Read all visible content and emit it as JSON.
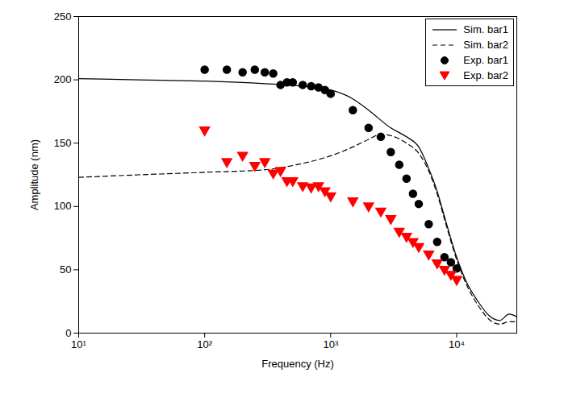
{
  "chart_data": {
    "type": "line",
    "x_label": "Frequency (Hz)",
    "y_label": "Amplitude (nm)",
    "log": "x",
    "xlim": [
      10,
      30000
    ],
    "xticks": [
      {
        "value": 10,
        "label": "10¹"
      },
      {
        "value": 100,
        "label": "10²"
      },
      {
        "value": 1000,
        "label": "10³"
      },
      {
        "value": 10000,
        "label": "10⁴"
      }
    ],
    "ylim": [
      0,
      250
    ],
    "yticks": [
      0,
      50,
      100,
      150,
      200,
      250
    ],
    "grid": false,
    "legend": "top-right",
    "series": [
      {
        "name": "Sim. bar1",
        "type": "line",
        "color": "#000000",
        "line_style": "solid",
        "x": [
          10,
          30,
          100,
          300,
          600,
          1000,
          1500,
          2000,
          3000,
          4000,
          5000,
          6000,
          7000,
          8000,
          10000,
          12000,
          15000,
          18000,
          22000,
          26000,
          30000
        ],
        "values": [
          201,
          200,
          199,
          197,
          195,
          192,
          185,
          176,
          162,
          155,
          147,
          130,
          112,
          92,
          60,
          40,
          24,
          14,
          10,
          15,
          13
        ]
      },
      {
        "name": "Sim. bar2",
        "type": "line",
        "color": "#000000",
        "line_style": "dashed",
        "x": [
          10,
          30,
          100,
          300,
          600,
          1000,
          1500,
          2000,
          2500,
          3000,
          4000,
          5000,
          6000,
          7000,
          8000,
          10000,
          12000,
          15000,
          18000,
          22000,
          26000,
          30000
        ],
        "values": [
          123,
          125,
          127,
          129,
          134,
          140,
          147,
          153,
          157,
          156,
          150,
          142,
          128,
          110,
          90,
          58,
          38,
          21,
          11,
          7,
          9,
          9
        ]
      },
      {
        "name": "Exp. bar1",
        "type": "scatter",
        "color": "#000000",
        "marker": "circle",
        "x": [
          100,
          150,
          200,
          250,
          300,
          350,
          400,
          450,
          500,
          600,
          700,
          800,
          900,
          1000,
          1500,
          2000,
          2500,
          3000,
          3500,
          4000,
          4500,
          5000,
          6000,
          7000,
          8000,
          9000,
          10000
        ],
        "values": [
          208,
          208,
          206,
          208,
          206,
          205,
          196,
          198,
          198,
          196,
          195,
          194,
          192,
          189,
          176,
          162,
          155,
          143,
          133,
          122,
          110,
          102,
          86,
          72,
          60,
          56,
          51
        ]
      },
      {
        "name": "Exp. bar2",
        "type": "scatter",
        "color": "#ff0000",
        "marker": "triangle-down",
        "x": [
          100,
          150,
          200,
          250,
          300,
          350,
          400,
          450,
          500,
          600,
          700,
          800,
          900,
          1000,
          1500,
          2000,
          2500,
          3000,
          3500,
          4000,
          4500,
          5000,
          6000,
          7000,
          8000,
          9000,
          10000
        ],
        "values": [
          160,
          135,
          140,
          132,
          135,
          126,
          128,
          120,
          120,
          116,
          115,
          116,
          112,
          108,
          104,
          100,
          96,
          90,
          80,
          76,
          72,
          68,
          62,
          55,
          50,
          46,
          42
        ]
      }
    ]
  }
}
